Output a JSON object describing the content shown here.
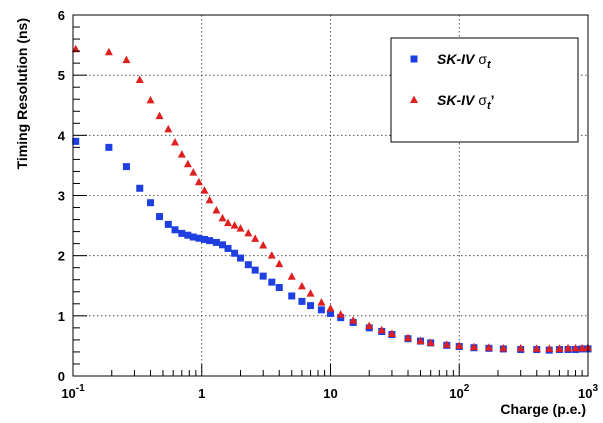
{
  "chart_data": {
    "type": "scatter",
    "xlabel": "Charge (p.e.)",
    "ylabel": "Timing Resolution (ns)",
    "xscale": "log",
    "xlim": [
      0.1,
      1000
    ],
    "ylim": [
      0,
      6
    ],
    "grid": true,
    "legend_position": "top-right",
    "x_ticks": [
      {
        "value": 0.1,
        "base": "10",
        "exp": "-1"
      },
      {
        "value": 1,
        "base": "1",
        "exp": ""
      },
      {
        "value": 10,
        "base": "10",
        "exp": ""
      },
      {
        "value": 100,
        "base": "10",
        "exp": "2"
      },
      {
        "value": 1000,
        "base": "10",
        "exp": "3"
      }
    ],
    "y_ticks": [
      "0",
      "1",
      "2",
      "3",
      "4",
      "5",
      "6"
    ],
    "series": [
      {
        "name": "SK-IV σt",
        "legend": {
          "main": "SK-IV",
          "symbol": "σ",
          "sub": "t",
          "suffix": ""
        },
        "marker": "square",
        "color": "#1f3fe0",
        "x": [
          0.105,
          0.19,
          0.26,
          0.33,
          0.4,
          0.47,
          0.55,
          0.62,
          0.7,
          0.78,
          0.86,
          0.95,
          1.05,
          1.15,
          1.3,
          1.45,
          1.6,
          1.8,
          2.0,
          2.3,
          2.6,
          3.0,
          3.5,
          4.0,
          5.0,
          6.0,
          7.0,
          8.5,
          10,
          12,
          15,
          20,
          25,
          30,
          40,
          50,
          60,
          80,
          100,
          130,
          170,
          220,
          300,
          400,
          500,
          600,
          700,
          800,
          900,
          1000
        ],
        "y": [
          3.9,
          3.8,
          3.48,
          3.12,
          2.88,
          2.65,
          2.52,
          2.43,
          2.37,
          2.34,
          2.31,
          2.29,
          2.27,
          2.25,
          2.22,
          2.18,
          2.12,
          2.04,
          1.96,
          1.85,
          1.76,
          1.66,
          1.56,
          1.47,
          1.33,
          1.24,
          1.17,
          1.1,
          1.04,
          0.97,
          0.89,
          0.8,
          0.74,
          0.69,
          0.62,
          0.58,
          0.55,
          0.51,
          0.49,
          0.47,
          0.46,
          0.45,
          0.44,
          0.44,
          0.43,
          0.44,
          0.44,
          0.44,
          0.45,
          0.45
        ]
      },
      {
        "name": "SK-IV σt’",
        "legend": {
          "main": "SK-IV",
          "symbol": "σ",
          "sub": "t",
          "suffix": "’"
        },
        "marker": "triangle",
        "color": "#e01f1f",
        "x": [
          0.105,
          0.19,
          0.26,
          0.33,
          0.4,
          0.47,
          0.55,
          0.62,
          0.7,
          0.78,
          0.86,
          0.95,
          1.05,
          1.15,
          1.3,
          1.45,
          1.6,
          1.8,
          2.0,
          2.3,
          2.6,
          3.0,
          3.5,
          4.0,
          5.0,
          6.0,
          7.0,
          8.5,
          10,
          12,
          15,
          20,
          25,
          30,
          40,
          50,
          60,
          80,
          100,
          130,
          170,
          220,
          300,
          400,
          500,
          600,
          700,
          800,
          900,
          1000
        ],
        "y": [
          5.43,
          5.38,
          5.25,
          4.92,
          4.58,
          4.32,
          4.1,
          3.88,
          3.68,
          3.52,
          3.38,
          3.22,
          3.08,
          2.92,
          2.75,
          2.62,
          2.54,
          2.5,
          2.45,
          2.37,
          2.28,
          2.17,
          2.0,
          1.86,
          1.65,
          1.49,
          1.37,
          1.22,
          1.12,
          1.02,
          0.92,
          0.83,
          0.76,
          0.7,
          0.63,
          0.58,
          0.55,
          0.52,
          0.5,
          0.48,
          0.47,
          0.46,
          0.46,
          0.45,
          0.45,
          0.45,
          0.46,
          0.46,
          0.46,
          0.47
        ]
      }
    ]
  }
}
